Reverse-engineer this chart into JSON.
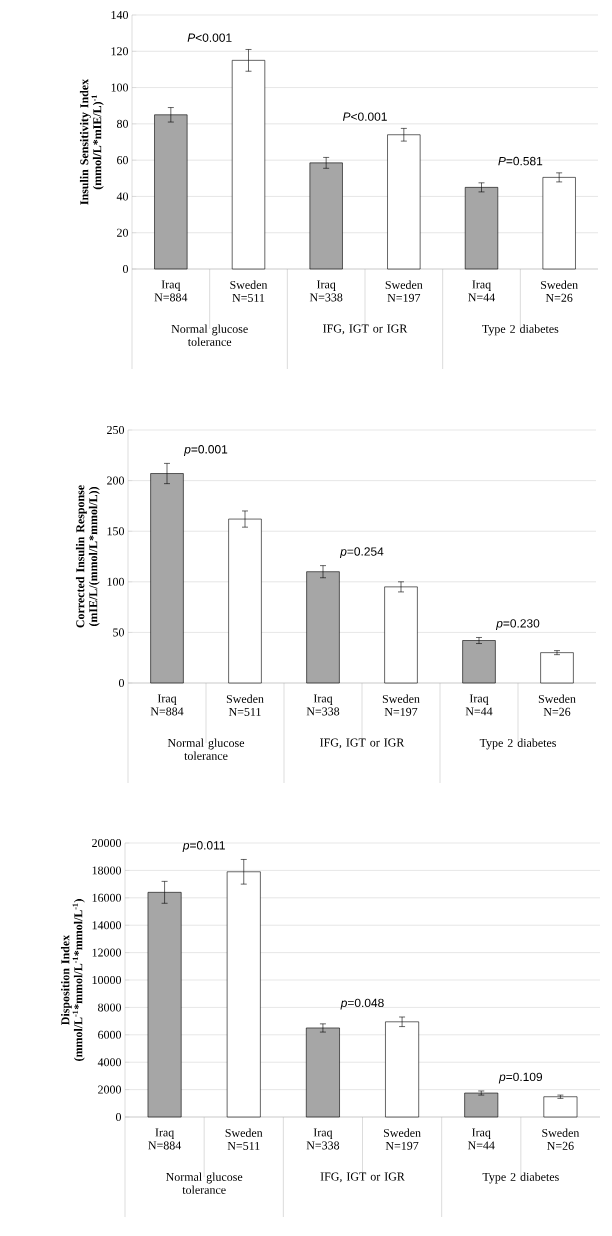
{
  "chart_data": [
    {
      "type": "bar",
      "ylabel": "Insulin Sensitivity Index (mmol/L*mIE/L)$^{-1}$",
      "categories": [
        "Iraq N=884",
        "Sweden N=511",
        "Iraq N=338",
        "Sweden N=197",
        "Iraq N=44",
        "Sweden N=26"
      ],
      "values": [
        85,
        115,
        58.5,
        74,
        45,
        50.5
      ],
      "errors": [
        4,
        6,
        3,
        3.5,
        2.5,
        2.5
      ],
      "colors": [
        "#a6a6a6",
        "#ffffff",
        "#a6a6a6",
        "#ffffff",
        "#a6a6a6",
        "#ffffff"
      ],
      "ylim": [
        0,
        140
      ],
      "yticks": [
        0,
        20,
        40,
        60,
        80,
        100,
        120,
        140
      ],
      "grid": "y",
      "annotations": [
        "*P*<0.001",
        "*P*<0.001",
        "*P*=0.581",
        "Normal glucose tolerance",
        "IFG, IGT or IGR",
        "Type 2 diabetes"
      ]
    },
    {
      "type": "bar",
      "ylabel": "Corrected Insulin Response (mIE/L/(mmol/L*mmol/L))",
      "categories": [
        "Iraq N=884",
        "Sweden N=511",
        "Iraq N=338",
        "Sweden N=197",
        "Iraq N=44",
        "Sweden N=26"
      ],
      "values": [
        207,
        162,
        110,
        95,
        42,
        30
      ],
      "errors": [
        10,
        8,
        6,
        5,
        3,
        2
      ],
      "colors": [
        "#a6a6a6",
        "#ffffff",
        "#a6a6a6",
        "#ffffff",
        "#a6a6a6",
        "#ffffff"
      ],
      "ylim": [
        0,
        250
      ],
      "yticks": [
        0,
        50,
        100,
        150,
        200,
        250
      ],
      "grid": "y",
      "annotations": [
        "*p*=0.001",
        "*p*=0.254",
        "*p*=0.230",
        "Normal glucose tolerance",
        "IFG, IGT or IGR",
        "Type 2 diabetes"
      ]
    },
    {
      "type": "bar",
      "ylabel": "Disposition Index (mmol/L$^{-1}$*mmol/L$^{-1}$*mmol/L$^{-1}$)",
      "categories": [
        "Iraq N=884",
        "Sweden N=511",
        "Iraq N=338",
        "Sweden N=197",
        "Iraq N=44",
        "Sweden N=26"
      ],
      "values": [
        16400,
        17900,
        6500,
        6950,
        1750,
        1480
      ],
      "errors": [
        800,
        900,
        300,
        350,
        150,
        120
      ],
      "colors": [
        "#a6a6a6",
        "#ffffff",
        "#a6a6a6",
        "#ffffff",
        "#a6a6a6",
        "#ffffff"
      ],
      "ylim": [
        0,
        20000
      ],
      "yticks": [
        0,
        2000,
        4000,
        6000,
        8000,
        10000,
        12000,
        14000,
        16000,
        18000,
        20000
      ],
      "grid": "y",
      "annotations": [
        "*p*=0.011",
        "*p*=0.048",
        "*p*=0.109",
        "Normal glucose tolerance",
        "IFG, IGT or IGR",
        "Type 2 diabetes"
      ]
    }
  ]
}
